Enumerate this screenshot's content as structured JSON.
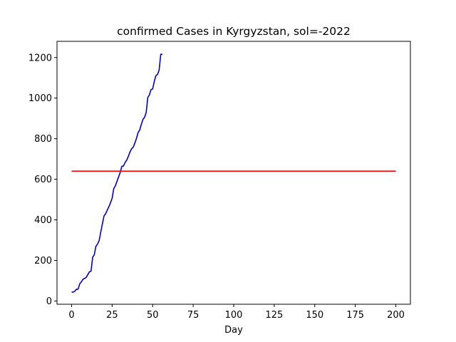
{
  "chart_data": {
    "type": "line",
    "title": "confirmed Cases in Kyrgyzstan, sol=-2022",
    "xlabel": "Day",
    "ylabel": "",
    "xlim": [
      -9,
      209
    ],
    "ylim": [
      -16,
      1280
    ],
    "xticks": [
      0,
      25,
      50,
      75,
      100,
      125,
      150,
      175,
      200
    ],
    "yticks": [
      0,
      200,
      400,
      600,
      800,
      1000,
      1200
    ],
    "grid": false,
    "series": [
      {
        "color": "#0000cc",
        "x": [
          0,
          1,
          2,
          3,
          4,
          5,
          6,
          7,
          8,
          9,
          10,
          11,
          12,
          13,
          14,
          15,
          16,
          17,
          18,
          19,
          20,
          21,
          22,
          23,
          24,
          25,
          26,
          27,
          28,
          29,
          30,
          31,
          32,
          33,
          34,
          35,
          36,
          37,
          38,
          39,
          40,
          41,
          42,
          43,
          44,
          45,
          46,
          47,
          48,
          49,
          50,
          51,
          52,
          53,
          54,
          55,
          56
        ],
        "y": [
          44,
          44,
          48,
          58,
          58,
          84,
          94,
          107,
          111,
          116,
          130,
          144,
          147,
          216,
          228,
          270,
          280,
          298,
          340,
          380,
          419,
          430,
          448,
          465,
          484,
          506,
          554,
          568,
          590,
          612,
          634,
          664,
          665,
          683,
          694,
          713,
          734,
          750,
          758,
          778,
          801,
          830,
          842,
          870,
          895,
          905,
          929,
          1003,
          1016,
          1042,
          1045,
          1082,
          1111,
          1117,
          1138,
          1216,
          1216
        ]
      },
      {
        "color": "#ff0000",
        "x": [
          0,
          200
        ],
        "y": [
          640,
          640
        ]
      }
    ]
  }
}
